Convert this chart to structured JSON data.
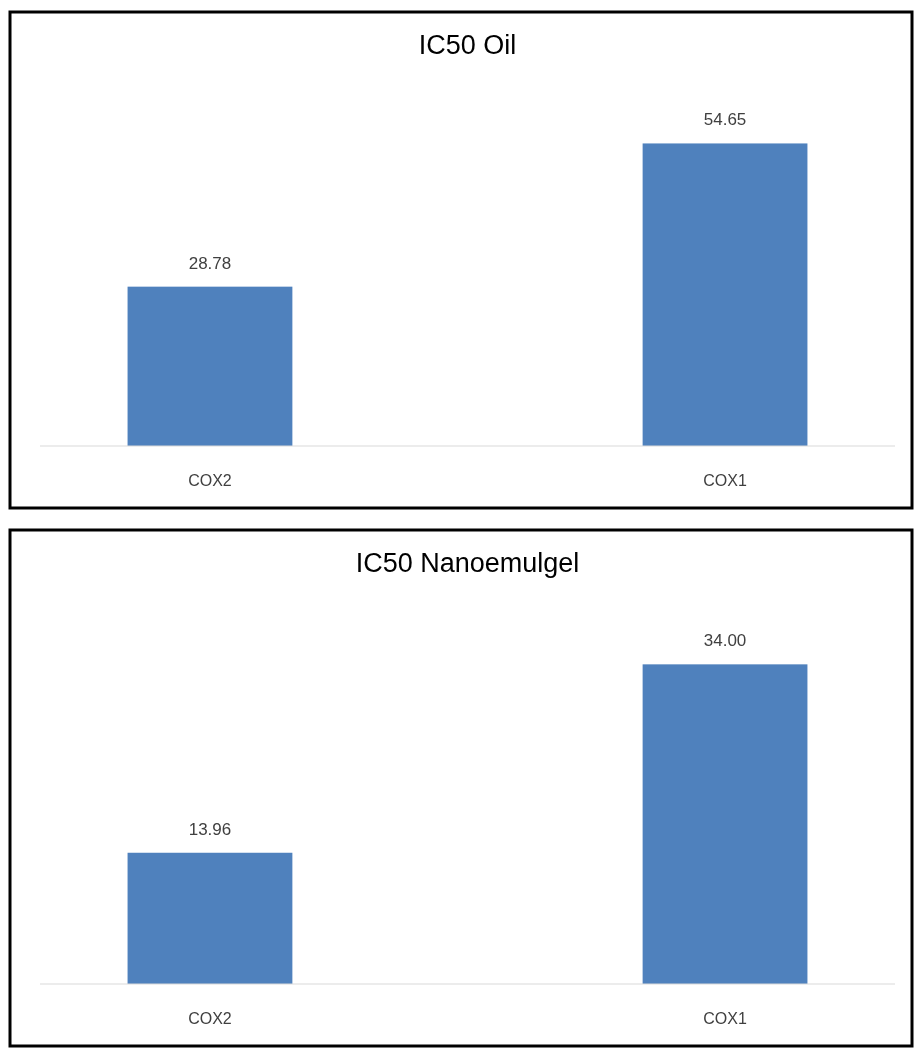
{
  "chart_data": [
    {
      "type": "bar",
      "title": "IC50 Oil",
      "categories": [
        "COX2",
        "COX1"
      ],
      "values": [
        28.78,
        54.65
      ],
      "color": "#4f81bd",
      "value_labels": [
        "28.78",
        "54.65"
      ]
    },
    {
      "type": "bar",
      "title": "IC50 Nanoemulgel",
      "categories": [
        "COX2",
        "COX1"
      ],
      "values": [
        13.96,
        34.0
      ],
      "color": "#4f81bd",
      "value_labels": [
        "13.96",
        "34.00"
      ]
    }
  ]
}
